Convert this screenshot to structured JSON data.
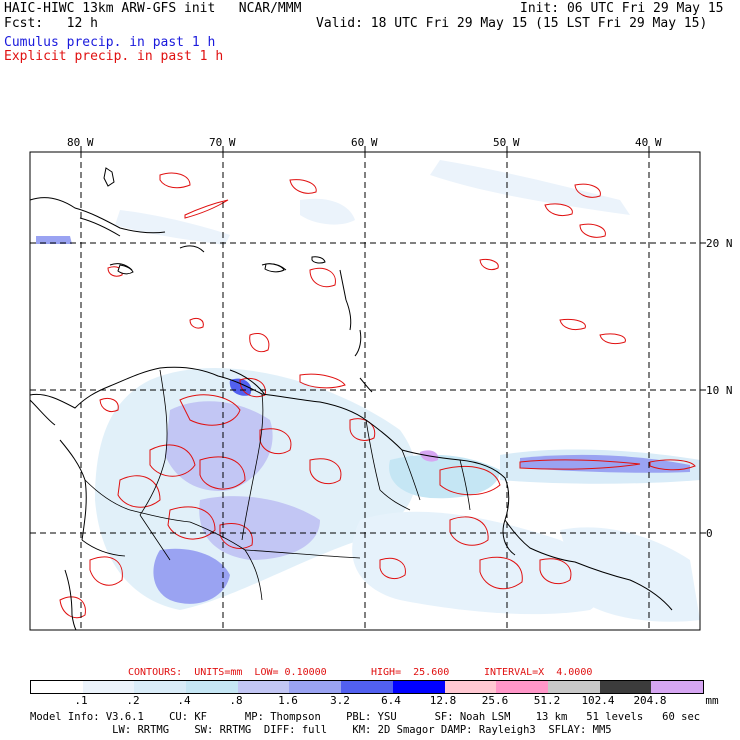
{
  "header": {
    "title_left": "HAIC-HIWC 13km ARW-GFS init   NCAR/MMM",
    "fcst": "Fcst:   12 h",
    "init": "Init: 06 UTC Fri 29 May 15",
    "valid": "Valid: 18 UTC Fri 29 May 15 (15 LST Fri 29 May 15)",
    "cumulus": "Cumulus precip. in past 1 h",
    "explicit": "Explicit precip. in past 1 h"
  },
  "axes": {
    "lon_labels": [
      "80 W",
      "70 W",
      "60 W",
      "50 W",
      "40 W"
    ],
    "lat_labels": [
      "20 N",
      "10 N",
      "0"
    ]
  },
  "contour_info": {
    "label": "CONTOURS:  UNITS=mm  LOW= 0.10000",
    "high": "HIGH=  25.600",
    "interval": "INTERVAL=X  4.0000"
  },
  "legend": {
    "labels": [
      ".1",
      ".2",
      ".4",
      ".8",
      "1.6",
      "3.2",
      "6.4",
      "12.8",
      "25.6",
      "51.2",
      "102.4",
      "204.8"
    ],
    "unit": "mm",
    "colors": [
      "#ffffff",
      "#ebf3fb",
      "#d9ecf8",
      "#c5e6f4",
      "#c2c6f4",
      "#9aa3f2",
      "#5260f0",
      "#0000ff",
      "#ffc8d2",
      "#ff96c8",
      "#c8c8c8",
      "#3c3c3c",
      "#d6a6f2"
    ]
  },
  "model_info": {
    "line1": "Model Info: V3.6.1    CU: KF      MP: Thompson    PBL: YSU      SF: Noah LSM    13 km   51 levels   60 sec",
    "line2": "             LW: RRTMG    SW: RRTMG  DIFF: full    KM: 2D Smagor DAMP: Rayleigh3  SFLAY: MM5"
  }
}
